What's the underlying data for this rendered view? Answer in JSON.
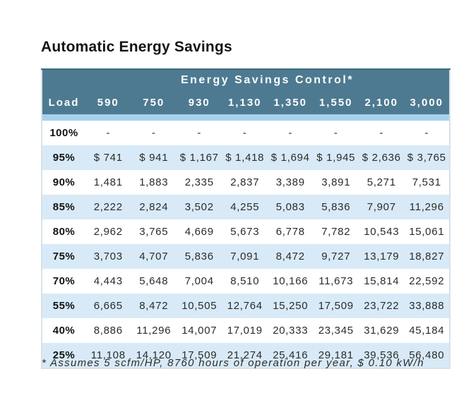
{
  "chart_data": {
    "type": "table",
    "title": "Automatic Energy Savings",
    "group_header": "Energy Savings Control*",
    "columns": [
      "Load",
      "590",
      "750",
      "930",
      "1,130",
      "1,350",
      "1,550",
      "2,100",
      "3,000"
    ],
    "rows": [
      {
        "load": "100%",
        "values": [
          "-",
          "-",
          "-",
          "-",
          "-",
          "-",
          "-",
          "-"
        ]
      },
      {
        "load": "95%",
        "values": [
          "$ 741",
          "$ 941",
          "$ 1,167",
          "$ 1,418",
          "$ 1,694",
          "$ 1,945",
          "$ 2,636",
          "$ 3,765"
        ]
      },
      {
        "load": "90%",
        "values": [
          "1,481",
          "1,883",
          "2,335",
          "2,837",
          "3,389",
          "3,891",
          "5,271",
          "7,531"
        ]
      },
      {
        "load": "85%",
        "values": [
          "2,222",
          "2,824",
          "3,502",
          "4,255",
          "5,083",
          "5,836",
          "7,907",
          "11,296"
        ]
      },
      {
        "load": "80%",
        "values": [
          "2,962",
          "3,765",
          "4,669",
          "5,673",
          "6,778",
          "7,782",
          "10,543",
          "15,061"
        ]
      },
      {
        "load": "75%",
        "values": [
          "3,703",
          "4,707",
          "5,836",
          "7,091",
          "8,472",
          "9,727",
          "13,179",
          "18,827"
        ]
      },
      {
        "load": "70%",
        "values": [
          "4,443",
          "5,648",
          "7,004",
          "8,510",
          "10,166",
          "11,673",
          "15,814",
          "22,592"
        ]
      },
      {
        "load": "55%",
        "values": [
          "6,665",
          "8,472",
          "10,505",
          "12,764",
          "15,250",
          "17,509",
          "23,722",
          "33,888"
        ]
      },
      {
        "load": "40%",
        "values": [
          "8,886",
          "11,296",
          "14,007",
          "17,019",
          "20,333",
          "23,345",
          "31,629",
          "45,184"
        ]
      },
      {
        "load": "25%",
        "values": [
          "11,108",
          "14,120",
          "17,509",
          "21,274",
          "25,416",
          "29,181",
          "39,536",
          "56,480"
        ]
      }
    ],
    "footnote": "* Assumes 5 scfm/HP, 8760 hours of operation per year, $ 0.10 kW/h",
    "layout": {
      "striped": true,
      "first_data_row_background": "white"
    }
  },
  "colors": {
    "header-bg": "#4d7a90",
    "header-edge": "#3f6b80",
    "divider-strip": "#a7d2ef",
    "row-alt": "#d8eaf7",
    "row-white": "#ffffff",
    "table-border": "#d7e1e8",
    "title-text": "#151515",
    "header-text": "#ffffff",
    "body-text": "#2b2b2b"
  }
}
